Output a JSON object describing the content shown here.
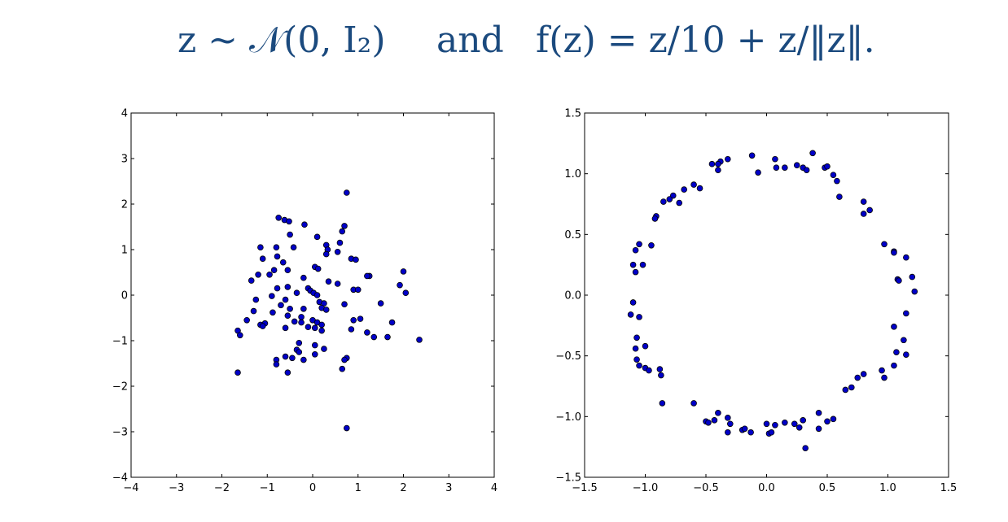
{
  "caption": {
    "left": "z ∼ 𝒩(0, I₂)",
    "middle": "and",
    "right": "f(z) = z/10 + z/‖z‖."
  },
  "colors": {
    "caption": "#1b4a7e",
    "marker_fill": "#0000c8",
    "marker_edge": "#000000"
  },
  "chart_data": [
    {
      "type": "scatter",
      "title": "",
      "xlabel": "",
      "ylabel": "",
      "xlim": [
        -4,
        4
      ],
      "ylim": [
        -4,
        4
      ],
      "xticks": [
        -4,
        -3,
        -2,
        -1,
        0,
        1,
        2,
        3,
        4
      ],
      "yticks": [
        -4,
        -3,
        -2,
        -1,
        0,
        1,
        2,
        3,
        4
      ],
      "xtick_labels": [
        "−4",
        "−3",
        "−2",
        "−1",
        "0",
        "1",
        "2",
        "3",
        "4"
      ],
      "ytick_labels": [
        "−4",
        "−3",
        "−2",
        "−1",
        "0",
        "1",
        "2",
        "3",
        "4"
      ],
      "grid": false,
      "points": [
        [
          0.75,
          2.25
        ],
        [
          -0.75,
          1.7
        ],
        [
          -0.62,
          1.65
        ],
        [
          -0.52,
          1.62
        ],
        [
          -0.18,
          1.55
        ],
        [
          0.7,
          1.52
        ],
        [
          -0.5,
          1.33
        ],
        [
          0.1,
          1.28
        ],
        [
          0.65,
          1.4
        ],
        [
          0.6,
          1.15
        ],
        [
          -1.15,
          1.05
        ],
        [
          -0.8,
          1.05
        ],
        [
          -0.42,
          1.05
        ],
        [
          0.3,
          1.1
        ],
        [
          0.33,
          1.0
        ],
        [
          0.55,
          0.95
        ],
        [
          0.3,
          0.9
        ],
        [
          -1.1,
          0.8
        ],
        [
          -0.78,
          0.85
        ],
        [
          -0.65,
          0.72
        ],
        [
          0.85,
          0.8
        ],
        [
          0.95,
          0.78
        ],
        [
          0.05,
          0.62
        ],
        [
          0.12,
          0.58
        ],
        [
          -0.85,
          0.55
        ],
        [
          -0.55,
          0.55
        ],
        [
          1.25,
          0.42
        ],
        [
          1.2,
          0.42
        ],
        [
          -1.35,
          0.32
        ],
        [
          -1.2,
          0.45
        ],
        [
          -0.95,
          0.45
        ],
        [
          -0.2,
          0.38
        ],
        [
          2.0,
          0.52
        ],
        [
          1.92,
          0.22
        ],
        [
          2.05,
          0.05
        ],
        [
          0.35,
          0.3
        ],
        [
          0.55,
          0.25
        ],
        [
          -0.78,
          0.15
        ],
        [
          -0.55,
          0.18
        ],
        [
          -0.35,
          0.05
        ],
        [
          -0.1,
          0.15
        ],
        [
          -0.05,
          0.1
        ],
        [
          0.02,
          0.05
        ],
        [
          0.1,
          0.0
        ],
        [
          0.9,
          0.12
        ],
        [
          1.0,
          0.12
        ],
        [
          -1.25,
          -0.1
        ],
        [
          -0.9,
          -0.02
        ],
        [
          -0.6,
          -0.1
        ],
        [
          0.15,
          -0.15
        ],
        [
          0.25,
          -0.18
        ],
        [
          0.7,
          -0.2
        ],
        [
          1.5,
          -0.18
        ],
        [
          -1.3,
          -0.35
        ],
        [
          -0.7,
          -0.22
        ],
        [
          -0.5,
          -0.3
        ],
        [
          -0.2,
          -0.3
        ],
        [
          0.2,
          -0.28
        ],
        [
          0.3,
          -0.32
        ],
        [
          -1.45,
          -0.55
        ],
        [
          -1.15,
          -0.65
        ],
        [
          -1.05,
          -0.62
        ],
        [
          -0.88,
          -0.38
        ],
        [
          -0.55,
          -0.45
        ],
        [
          -0.25,
          -0.48
        ],
        [
          0.0,
          -0.55
        ],
        [
          0.1,
          -0.6
        ],
        [
          0.9,
          -0.55
        ],
        [
          1.05,
          -0.52
        ],
        [
          1.75,
          -0.6
        ],
        [
          -1.65,
          -0.78
        ],
        [
          -1.1,
          -0.68
        ],
        [
          -0.6,
          -0.72
        ],
        [
          -0.4,
          -0.58
        ],
        [
          -0.25,
          -0.6
        ],
        [
          -0.1,
          -0.7
        ],
        [
          0.05,
          -0.72
        ],
        [
          0.2,
          -0.65
        ],
        [
          0.2,
          -0.78
        ],
        [
          0.85,
          -0.75
        ],
        [
          1.2,
          -0.82
        ],
        [
          -1.6,
          -0.88
        ],
        [
          1.35,
          -0.92
        ],
        [
          1.65,
          -0.92
        ],
        [
          2.35,
          -0.98
        ],
        [
          -0.3,
          -1.05
        ],
        [
          0.05,
          -1.1
        ],
        [
          -0.35,
          -1.2
        ],
        [
          -0.3,
          -1.25
        ],
        [
          0.25,
          -1.18
        ],
        [
          -0.6,
          -1.35
        ],
        [
          -0.45,
          -1.38
        ],
        [
          0.05,
          -1.3
        ],
        [
          -0.8,
          -1.42
        ],
        [
          -0.2,
          -1.42
        ],
        [
          0.75,
          -1.38
        ],
        [
          0.7,
          -1.42
        ],
        [
          -0.8,
          -1.52
        ],
        [
          -0.55,
          -1.7
        ],
        [
          0.65,
          -1.62
        ],
        [
          -1.65,
          -1.7
        ],
        [
          0.75,
          -2.92
        ]
      ]
    },
    {
      "type": "scatter",
      "title": "",
      "xlabel": "",
      "ylabel": "",
      "xlim": [
        -1.5,
        1.5
      ],
      "ylim": [
        -1.5,
        1.5
      ],
      "xticks": [
        -1.5,
        -1.0,
        -0.5,
        0.0,
        0.5,
        1.0,
        1.5
      ],
      "yticks": [
        -1.5,
        -1.0,
        -0.5,
        0.0,
        0.5,
        1.0,
        1.5
      ],
      "xtick_labels": [
        "−1.5",
        "−1.0",
        "−0.5",
        "0.0",
        "0.5",
        "1.0",
        "1.5"
      ],
      "ytick_labels": [
        "−1.5",
        "−1.0",
        "−0.5",
        "0.0",
        "0.5",
        "1.0",
        "1.5"
      ],
      "grid": false,
      "points": [
        [
          -0.12,
          1.15
        ],
        [
          0.07,
          1.12
        ],
        [
          0.08,
          1.05
        ],
        [
          0.15,
          1.05
        ],
        [
          0.25,
          1.07
        ],
        [
          0.3,
          1.05
        ],
        [
          0.33,
          1.03
        ],
        [
          0.38,
          1.17
        ],
        [
          0.48,
          1.05
        ],
        [
          0.5,
          1.06
        ],
        [
          0.55,
          0.99
        ],
        [
          0.58,
          0.94
        ],
        [
          0.6,
          0.81
        ],
        [
          -0.07,
          1.01
        ],
        [
          -0.32,
          1.12
        ],
        [
          -0.38,
          1.1
        ],
        [
          -0.4,
          1.08
        ],
        [
          -0.4,
          1.03
        ],
        [
          -0.45,
          1.08
        ],
        [
          -0.55,
          0.88
        ],
        [
          -0.6,
          0.91
        ],
        [
          -0.68,
          0.87
        ],
        [
          -0.72,
          0.76
        ],
        [
          -0.77,
          0.82
        ],
        [
          -0.8,
          0.79
        ],
        [
          -0.85,
          0.77
        ],
        [
          -0.91,
          0.65
        ],
        [
          -0.92,
          0.63
        ],
        [
          -0.95,
          0.41
        ],
        [
          -1.05,
          0.42
        ],
        [
          -1.08,
          0.37
        ],
        [
          -1.02,
          0.25
        ],
        [
          -1.1,
          0.25
        ],
        [
          -1.08,
          0.19
        ],
        [
          0.8,
          0.77
        ],
        [
          0.8,
          0.67
        ],
        [
          0.85,
          0.7
        ],
        [
          0.97,
          0.42
        ],
        [
          1.05,
          0.36
        ],
        [
          1.05,
          0.35
        ],
        [
          1.15,
          0.31
        ],
        [
          1.2,
          0.15
        ],
        [
          1.22,
          0.03
        ],
        [
          1.08,
          0.13
        ],
        [
          1.09,
          0.12
        ],
        [
          -1.1,
          -0.06
        ],
        [
          -1.12,
          -0.16
        ],
        [
          -1.05,
          -0.18
        ],
        [
          -1.07,
          -0.35
        ],
        [
          -1.08,
          -0.44
        ],
        [
          -1.0,
          -0.42
        ],
        [
          -1.07,
          -0.53
        ],
        [
          -1.05,
          -0.58
        ],
        [
          -1.0,
          -0.6
        ],
        [
          -0.97,
          -0.62
        ],
        [
          -0.88,
          -0.61
        ],
        [
          -0.87,
          -0.66
        ],
        [
          -0.86,
          -0.89
        ],
        [
          -0.6,
          -0.89
        ],
        [
          1.15,
          -0.15
        ],
        [
          1.05,
          -0.26
        ],
        [
          1.13,
          -0.37
        ],
        [
          1.07,
          -0.47
        ],
        [
          1.15,
          -0.49
        ],
        [
          1.05,
          -0.58
        ],
        [
          0.95,
          -0.62
        ],
        [
          0.97,
          -0.68
        ],
        [
          0.8,
          -0.65
        ],
        [
          0.75,
          -0.68
        ],
        [
          0.7,
          -0.76
        ],
        [
          0.65,
          -0.78
        ],
        [
          -0.5,
          -1.04
        ],
        [
          -0.48,
          -1.05
        ],
        [
          -0.43,
          -1.03
        ],
        [
          -0.4,
          -0.97
        ],
        [
          -0.32,
          -1.01
        ],
        [
          -0.3,
          -1.06
        ],
        [
          -0.32,
          -1.13
        ],
        [
          -0.2,
          -1.11
        ],
        [
          -0.18,
          -1.1
        ],
        [
          -0.13,
          -1.13
        ],
        [
          0.0,
          -1.06
        ],
        [
          0.02,
          -1.14
        ],
        [
          0.04,
          -1.13
        ],
        [
          0.07,
          -1.07
        ],
        [
          0.15,
          -1.05
        ],
        [
          0.23,
          -1.06
        ],
        [
          0.27,
          -1.09
        ],
        [
          0.3,
          -1.03
        ],
        [
          0.32,
          -1.26
        ],
        [
          0.43,
          -0.97
        ],
        [
          0.43,
          -1.1
        ],
        [
          0.5,
          -1.04
        ],
        [
          0.55,
          -1.02
        ]
      ]
    }
  ]
}
